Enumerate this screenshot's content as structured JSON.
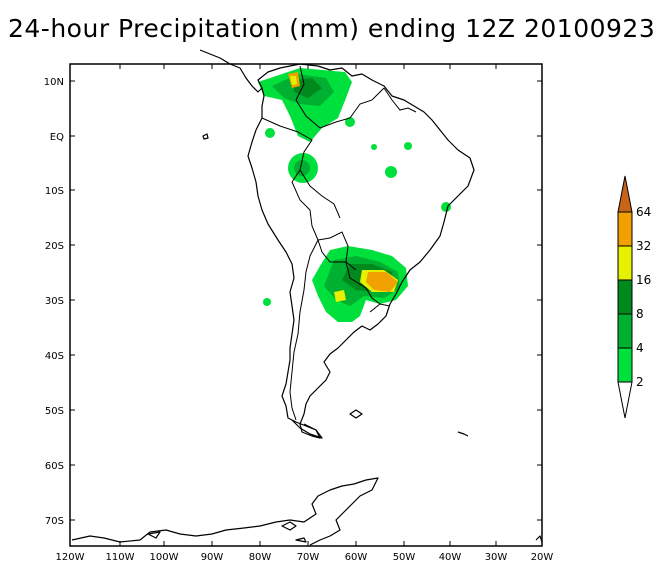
{
  "title": "24-hour Precipitation (mm) ending 12Z 20100923",
  "lat_labels": [
    "10N",
    "EQ",
    "10S",
    "20S",
    "30S",
    "40S",
    "50S",
    "60S",
    "70S"
  ],
  "lon_labels": [
    "120W",
    "110W",
    "100W",
    "90W",
    "80W",
    "70W",
    "60W",
    "50W",
    "40W",
    "30W",
    "20W"
  ],
  "legend": {
    "labels": [
      "2",
      "4",
      "8",
      "16",
      "32",
      "64"
    ],
    "colors": [
      "#ffffff",
      "#00e03c",
      "#00b030",
      "#008a1e",
      "#e6f000",
      "#f0a000",
      "#c86418"
    ]
  },
  "colors": {
    "coast": "#000000",
    "ocean": "#ffffff",
    "land": "#ffffff"
  }
}
